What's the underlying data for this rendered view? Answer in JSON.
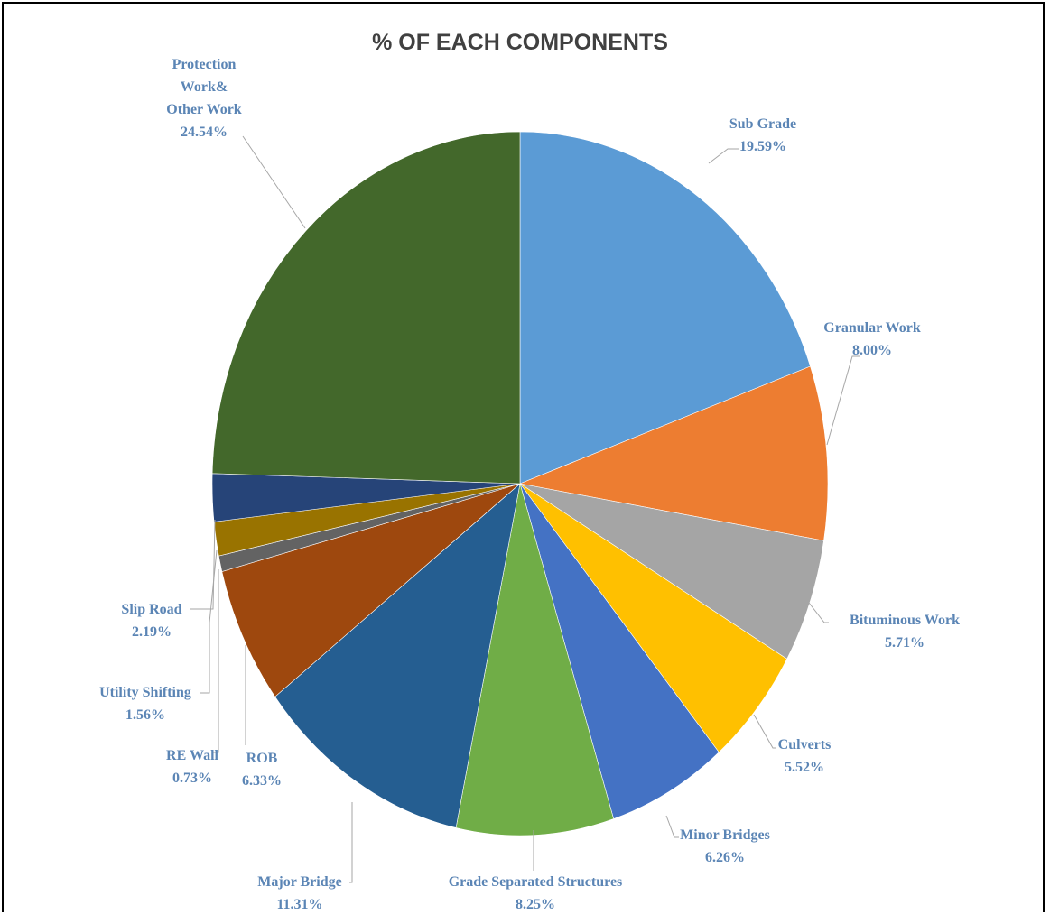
{
  "chart_data": {
    "type": "pie",
    "title": "% OF EACH COMPONENTS",
    "start_angle_deg": 0,
    "direction": "clockwise",
    "label_color": "#5b85b5",
    "slices": [
      {
        "label": [
          "Sub Grade"
        ],
        "value": 19.59,
        "display": "19.59%",
        "color": "#5b9bd5"
      },
      {
        "label": [
          "Granular  Work"
        ],
        "value": 8.0,
        "display": "8.00%",
        "color": "#ed7d31"
      },
      {
        "label": [
          "Bituminous  Work"
        ],
        "value": 5.71,
        "display": "5.71%",
        "color": "#a5a5a5"
      },
      {
        "label": [
          "Culverts"
        ],
        "value": 5.52,
        "display": "5.52%",
        "color": "#ffc000"
      },
      {
        "label": [
          "Minor  Bridges"
        ],
        "value": 6.26,
        "display": "6.26%",
        "color": "#4472c4"
      },
      {
        "label": [
          "Grade  Separated  Structures"
        ],
        "value": 8.25,
        "display": "8.25%",
        "color": "#70ad47"
      },
      {
        "label": [
          "Major  Bridge"
        ],
        "value": 11.31,
        "display": "11.31%",
        "color": "#255e91"
      },
      {
        "label": [
          "ROB"
        ],
        "value": 6.33,
        "display": "6.33%",
        "color": "#9e480e"
      },
      {
        "label": [
          "RE Wall"
        ],
        "value": 0.73,
        "display": "0.73%",
        "color": "#636363"
      },
      {
        "label": [
          "Utility  Shifting"
        ],
        "value": 1.56,
        "display": "1.56%",
        "color": "#997300"
      },
      {
        "label": [
          "Slip Road"
        ],
        "value": 2.19,
        "display": "2.19%",
        "color": "#264478"
      },
      {
        "label": [
          "Protection",
          "Work&",
          "Other Work"
        ],
        "value": 24.54,
        "display": "24.54%",
        "color": "#43682b"
      }
    ]
  }
}
